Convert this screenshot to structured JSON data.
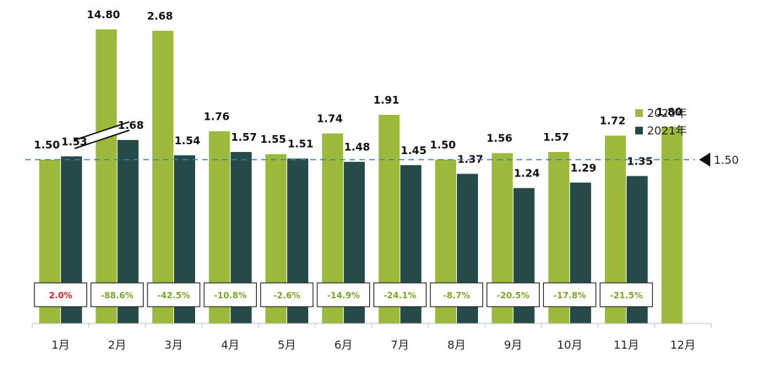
{
  "chart_data": {
    "type": "bar",
    "categories": [
      "1月",
      "2月",
      "3月",
      "4月",
      "5月",
      "6月",
      "7月",
      "8月",
      "9月",
      "10月",
      "11月",
      "12月"
    ],
    "series": [
      {
        "name": "2020年",
        "values": [
          1.5,
          14.8,
          2.68,
          1.76,
          1.55,
          1.74,
          1.91,
          1.5,
          1.56,
          1.57,
          1.72,
          1.8
        ],
        "labels": [
          "1.50",
          "14.80",
          "2.68",
          "1.76",
          "1.55",
          "1.74",
          "1.91",
          "1.50",
          "1.56",
          "1.57",
          "1.72",
          "1.80"
        ]
      },
      {
        "name": "2021年",
        "values": [
          1.53,
          1.68,
          1.54,
          1.57,
          1.51,
          1.48,
          1.45,
          1.37,
          1.24,
          1.29,
          1.35,
          null
        ],
        "labels": [
          "1.53",
          "1.68",
          "1.54",
          "1.57",
          "1.51",
          "1.48",
          "1.45",
          "1.37",
          "1.24",
          "1.29",
          "1.35",
          ""
        ]
      }
    ],
    "yoy_change": [
      "2.0%",
      "-88.6%",
      "-42.5%",
      "-10.8%",
      "-2.6%",
      "-14.9%",
      "-24.1%",
      "-8.7%",
      "-20.5%",
      "-17.8%",
      "-21.5%"
    ],
    "reference_line": {
      "value": 1.5,
      "label": "1.50"
    },
    "axis_break": {
      "category": "2月",
      "series": "2020年"
    },
    "legend_position": "right",
    "colors": {
      "series_2020": "#9bba3b",
      "series_2021": "#264a4a",
      "reference": "#3a7fc0",
      "positive": "#e0202a",
      "negative": "#7aa52a"
    },
    "title": "",
    "xlabel": "",
    "ylabel": ""
  }
}
